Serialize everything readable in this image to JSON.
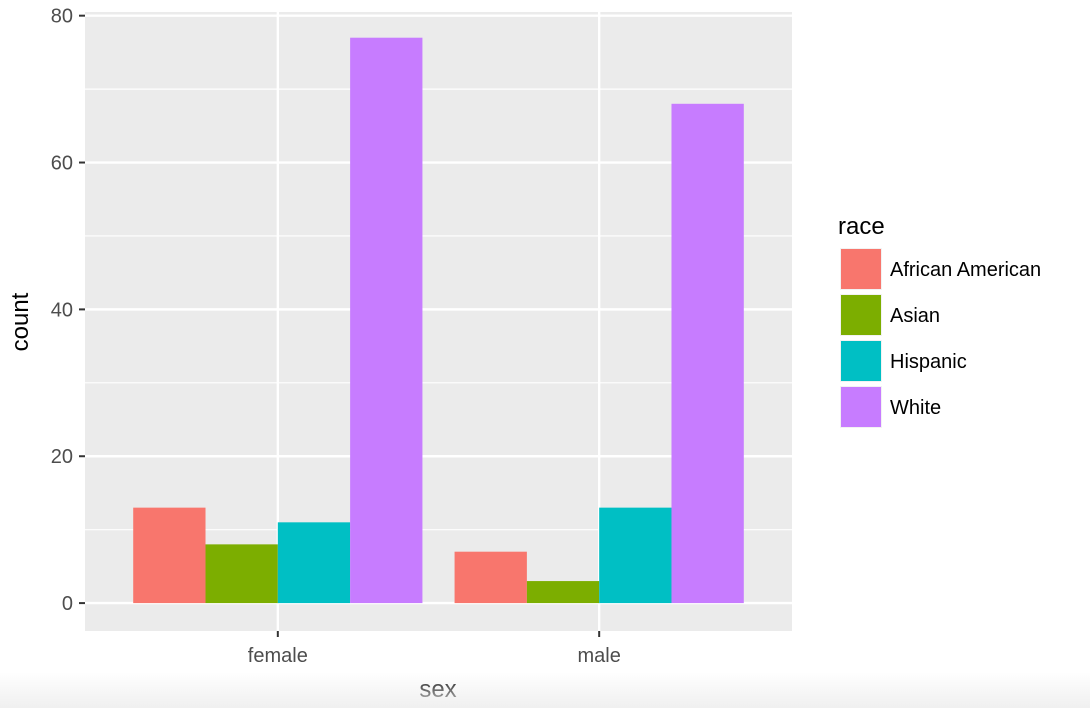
{
  "chart_data": {
    "type": "bar",
    "title": "",
    "xlabel": "sex",
    "ylabel": "count",
    "categories": [
      "female",
      "male"
    ],
    "series": [
      {
        "name": "African American",
        "color": "#F8766D",
        "values": [
          13,
          7
        ]
      },
      {
        "name": "Asian",
        "color": "#7CAE00",
        "values": [
          8,
          3
        ]
      },
      {
        "name": "Hispanic",
        "color": "#00BFC4",
        "values": [
          11,
          13
        ]
      },
      {
        "name": "White",
        "color": "#C77CFF",
        "values": [
          77,
          68
        ]
      }
    ],
    "ylim": [
      -3.8,
      80.5
    ],
    "yticks": [
      0,
      20,
      40,
      60,
      80
    ],
    "grid": true,
    "legend": {
      "title": "race",
      "position": "right"
    },
    "panel_background": "#EBEBEB",
    "grid_color": "#FFFFFF"
  }
}
